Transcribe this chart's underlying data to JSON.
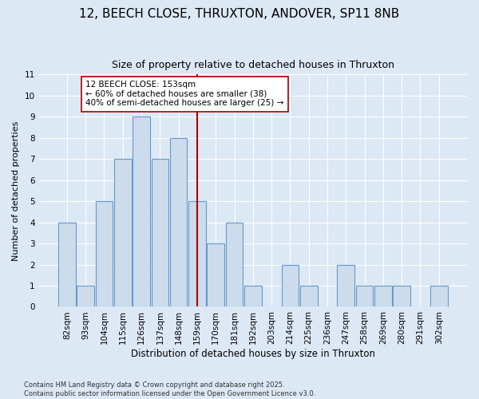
{
  "title": "12, BEECH CLOSE, THRUXTON, ANDOVER, SP11 8NB",
  "subtitle": "Size of property relative to detached houses in Thruxton",
  "xlabel": "Distribution of detached houses by size in Thruxton",
  "ylabel": "Number of detached properties",
  "categories": [
    "82sqm",
    "93sqm",
    "104sqm",
    "115sqm",
    "126sqm",
    "137sqm",
    "148sqm",
    "159sqm",
    "170sqm",
    "181sqm",
    "192sqm",
    "203sqm",
    "214sqm",
    "225sqm",
    "236sqm",
    "247sqm",
    "258sqm",
    "269sqm",
    "280sqm",
    "291sqm",
    "302sqm"
  ],
  "values": [
    4,
    1,
    5,
    7,
    9,
    7,
    8,
    5,
    3,
    4,
    1,
    0,
    2,
    1,
    0,
    2,
    1,
    1,
    1,
    0,
    1
  ],
  "bar_color": "#ccdcec",
  "bar_edge_color": "#6699cc",
  "vline_x": 7.0,
  "vline_color": "#aa0000",
  "annotation_line1": "12 BEECH CLOSE: 153sqm",
  "annotation_line2": "← 60% of detached houses are smaller (38)",
  "annotation_line3": "40% of semi-detached houses are larger (25) →",
  "annotation_box_color": "#ffffff",
  "annotation_box_edge_color": "#aa0000",
  "ylim": [
    0,
    11
  ],
  "yticks": [
    0,
    1,
    2,
    3,
    4,
    5,
    6,
    7,
    8,
    9,
    10,
    11
  ],
  "background_color": "#dce8f4",
  "plot_bg_color": "#dce8f4",
  "grid_color": "#ffffff",
  "footer_text": "Contains HM Land Registry data © Crown copyright and database right 2025.\nContains public sector information licensed under the Open Government Licence v3.0.",
  "title_fontsize": 11,
  "subtitle_fontsize": 9,
  "xlabel_fontsize": 8.5,
  "ylabel_fontsize": 8,
  "tick_fontsize": 7.5,
  "annotation_fontsize": 7.5,
  "footer_fontsize": 6
}
